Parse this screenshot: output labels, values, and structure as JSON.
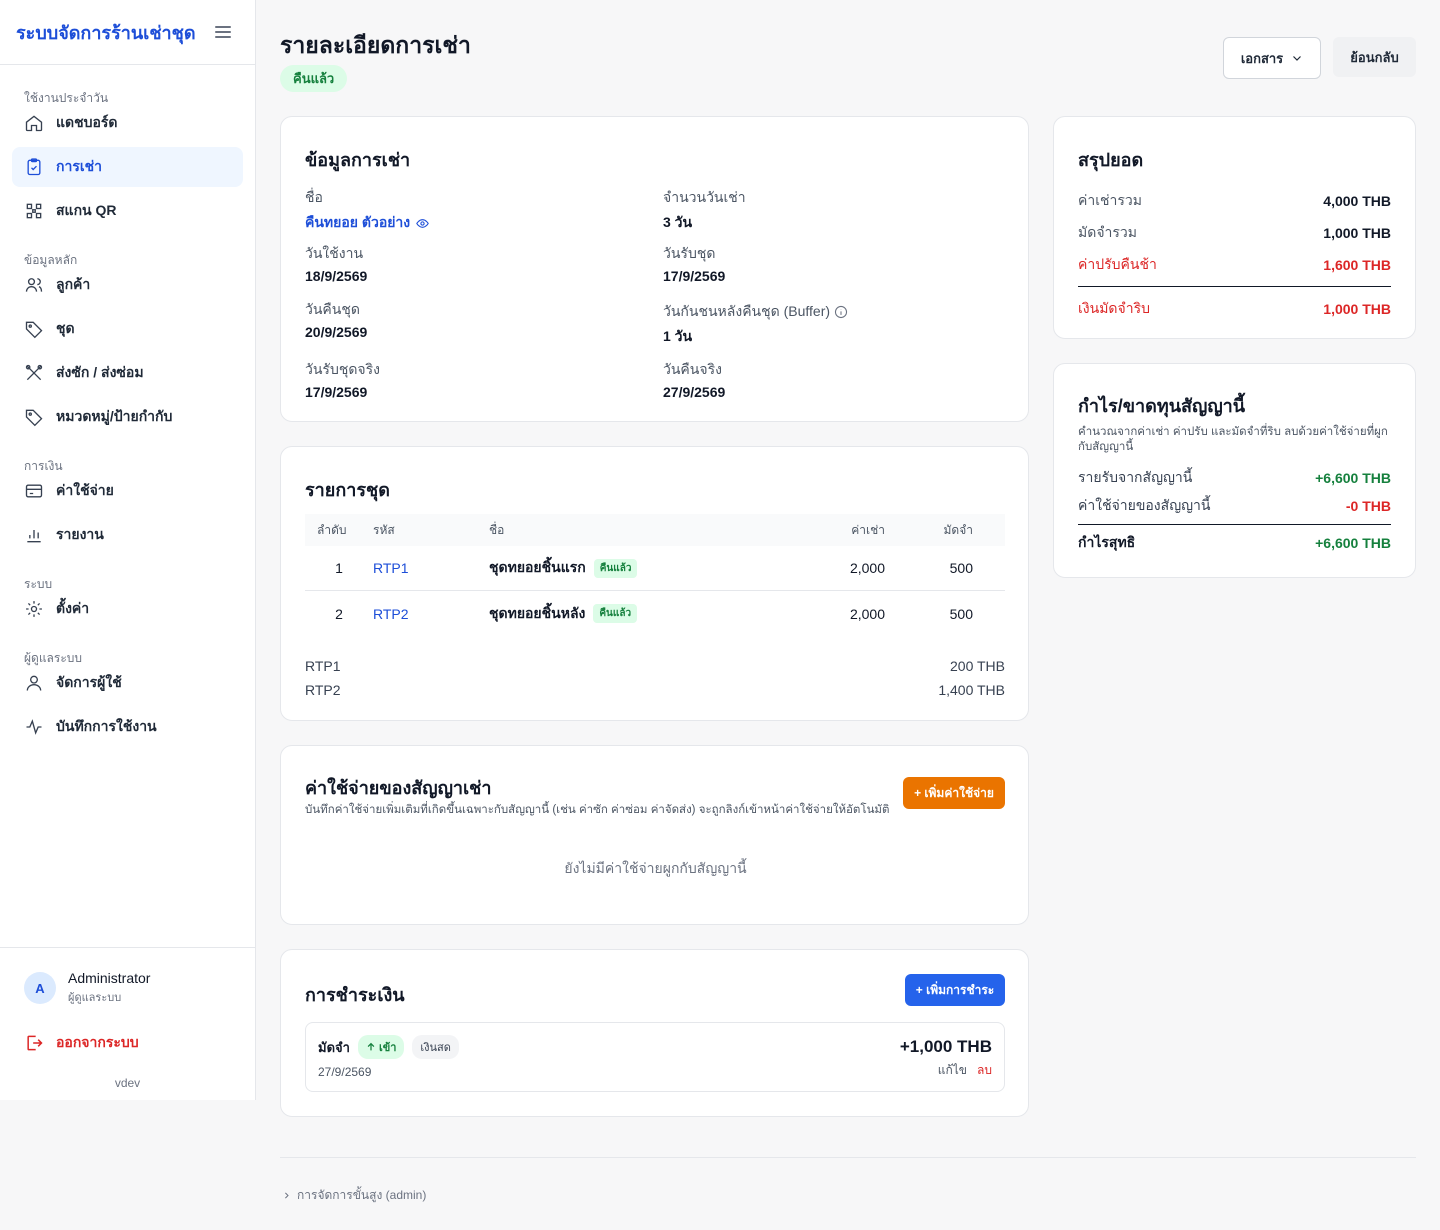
{
  "app": {
    "title": "ระบบจัดการร้านเช่าชุด",
    "version": "vdev"
  },
  "sidebar": {
    "sections": [
      {
        "title": "ใช้งานประจำวัน",
        "items": [
          {
            "label": "แดชบอร์ด",
            "icon": "home-icon"
          },
          {
            "label": "การเช่า",
            "icon": "clipboard-check-icon",
            "active": true
          },
          {
            "label": "สแกน QR",
            "icon": "qr-scan-icon"
          }
        ]
      },
      {
        "title": "ข้อมูลหลัก",
        "items": [
          {
            "label": "ลูกค้า",
            "icon": "users-icon"
          },
          {
            "label": "ชุด",
            "icon": "tag-icon"
          },
          {
            "label": "ส่งซัก / ส่งซ่อม",
            "icon": "tools-icon"
          },
          {
            "label": "หมวดหมู่/ป้ายกำกับ",
            "icon": "label-icon"
          }
        ]
      },
      {
        "title": "การเงิน",
        "items": [
          {
            "label": "ค่าใช้จ่าย",
            "icon": "credit-card-icon"
          },
          {
            "label": "รายงาน",
            "icon": "bar-chart-icon"
          }
        ]
      },
      {
        "title": "ระบบ",
        "items": [
          {
            "label": "ตั้งค่า",
            "icon": "gear-icon"
          }
        ]
      },
      {
        "title": "ผู้ดูแลระบบ",
        "items": [
          {
            "label": "จัดการผู้ใช้",
            "icon": "user-icon"
          },
          {
            "label": "บันทึกการใช้งาน",
            "icon": "activity-icon"
          }
        ]
      }
    ],
    "user": {
      "initial": "A",
      "name": "Administrator",
      "role": "ผู้ดูแลระบบ"
    },
    "logout_label": "ออกจากระบบ"
  },
  "header": {
    "title": "รายละเอียดการเช่า",
    "status": "คืนแล้ว",
    "documents_label": "เอกสาร",
    "back_label": "ย้อนกลับ"
  },
  "rental_info": {
    "title": "ข้อมูลการเช่า",
    "name_label": "ชื่อ",
    "name_value": "คืนทยอย ตัวอย่าง",
    "days_label": "จำนวนวันเช่า",
    "days_value": "3 วัน",
    "use_date_label": "วันใช้งาน",
    "use_date_value": "18/9/2569",
    "pickup_label": "วันรับชุด",
    "pickup_value": "17/9/2569",
    "return_label": "วันคืนชุด",
    "return_value": "20/9/2569",
    "buffer_label": "วันกันชนหลังคืนชุด (Buffer)",
    "buffer_value": "1 วัน",
    "actual_pickup_label": "วันรับชุดจริง",
    "actual_pickup_value": "17/9/2569",
    "actual_return_label": "วันคืนจริง",
    "actual_return_value": "27/9/2569"
  },
  "items": {
    "title": "รายการชุด",
    "headers": {
      "no": "ลำดับ",
      "code": "รหัส",
      "name": "ชื่อ",
      "rent": "ค่าเช่า",
      "deposit": "มัดจำ"
    },
    "rows": [
      {
        "no": "1",
        "code": "RTP1",
        "name": "ชุดทยอยชิ้นแรก",
        "badge": "คืนแล้ว",
        "rent": "2,000",
        "deposit": "500"
      },
      {
        "no": "2",
        "code": "RTP2",
        "name": "ชุดทยอยชิ้นหลัง",
        "badge": "คืนแล้ว",
        "rent": "2,000",
        "deposit": "500"
      }
    ],
    "fees": [
      {
        "code": "RTP1",
        "amount": "200 THB"
      },
      {
        "code": "RTP2",
        "amount": "1,400 THB"
      }
    ]
  },
  "expenses": {
    "title": "ค่าใช้จ่ายของสัญญาเช่า",
    "subtitle": "บันทึกค่าใช้จ่ายเพิ่มเติมที่เกิดขึ้นเฉพาะกับสัญญานี้ (เช่น ค่าซัก ค่าซ่อม ค่าจัดส่ง) จะถูกลิงก์เข้าหน้าค่าใช้จ่ายให้อัตโนมัติ",
    "add_label": "+ เพิ่มค่าใช้จ่าย",
    "empty": "ยังไม่มีค่าใช้จ่ายผูกกับสัญญานี้"
  },
  "payments": {
    "title": "การชำระเงิน",
    "add_label": "+ เพิ่มการชำระ",
    "entries": [
      {
        "type": "มัดจำ",
        "direction": "เข้า",
        "method": "เงินสด",
        "date": "27/9/2569",
        "amount": "+1,000 THB",
        "edit": "แก้ไข",
        "delete": "ลบ"
      }
    ]
  },
  "summary": {
    "title": "สรุปยอด",
    "rent_total_label": "ค่าเช่ารวม",
    "rent_total": "4,000 THB",
    "deposit_total_label": "มัดจำรวม",
    "deposit_total": "1,000 THB",
    "late_fee_label": "ค่าปรับคืนช้า",
    "late_fee": "1,600 THB",
    "forfeit_label": "เงินมัดจำริบ",
    "forfeit": "1,000 THB"
  },
  "profit": {
    "title": "กำไร/ขาดทุนสัญญานี้",
    "subtitle": "คำนวณจากค่าเช่า ค่าปรับ และมัดจำที่ริบ ลบด้วยค่าใช้จ่ายที่ผูกกับสัญญานี้",
    "income_label": "รายรับจากสัญญานี้",
    "income": "+6,600 THB",
    "expense_label": "ค่าใช้จ่ายของสัญญานี้",
    "expense": "-0 THB",
    "net_label": "กำไรสุทธิ",
    "net": "+6,600 THB"
  },
  "footer": {
    "advanced_label": "การจัดการขั้นสูง (admin)"
  },
  "colors": {
    "primary": "#1d4ed8",
    "accent_orange": "#ea7400",
    "success": "#15803d",
    "danger": "#dc2626"
  }
}
